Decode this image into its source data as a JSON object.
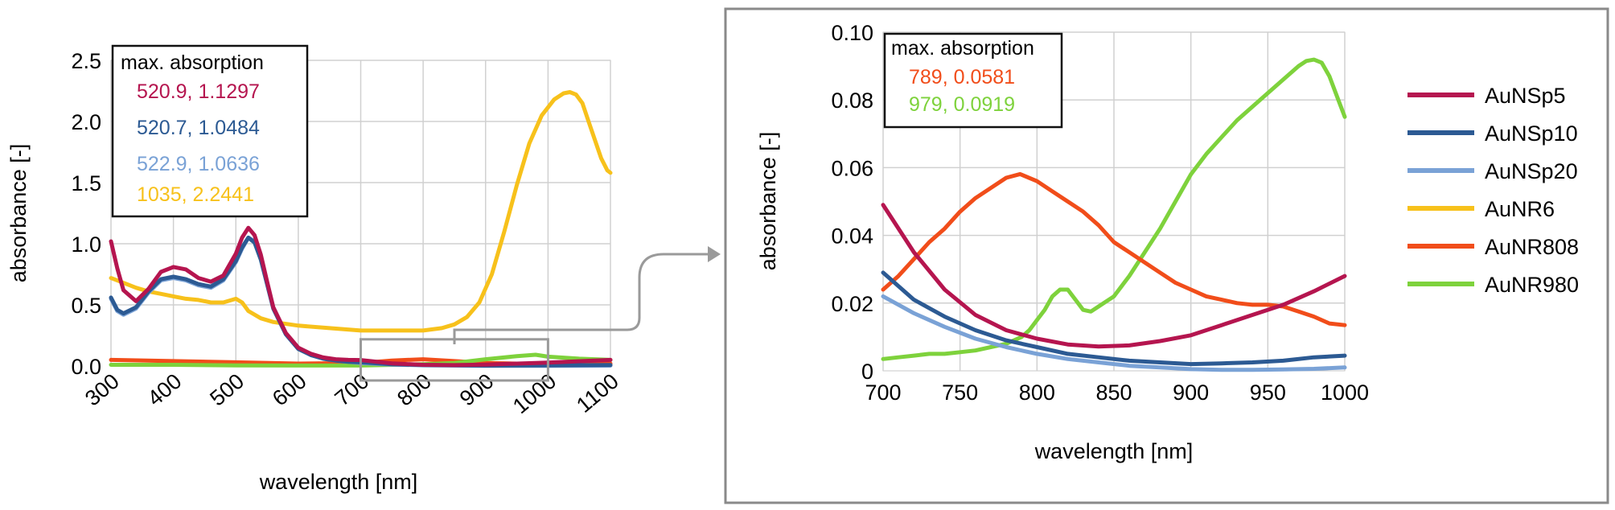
{
  "series_styles": [
    {
      "name": "AuNSp5",
      "color": "#b5154f"
    },
    {
      "name": "AuNSp10",
      "color": "#2c5a93"
    },
    {
      "name": "AuNSp20",
      "color": "#7aa2d6"
    },
    {
      "name": "AuNR6",
      "color": "#f7c11b"
    },
    {
      "name": "AuNR808",
      "color": "#f14d1a"
    },
    {
      "name": "AuNR980",
      "color": "#7ed23c"
    }
  ],
  "chart_data": [
    {
      "type": "line",
      "xlabel": "wavelength [nm]",
      "ylabel": "absorbance [-]",
      "xlim": [
        300,
        1100
      ],
      "ylim": [
        0,
        2.5
      ],
      "xticks": [
        300,
        400,
        500,
        600,
        700,
        800,
        900,
        1000,
        1100
      ],
      "xtick_labels": [
        "300",
        "400",
        "500",
        "600",
        "700",
        "800",
        "900",
        "1000",
        "1100"
      ],
      "yticks": [
        0,
        0.5,
        1.0,
        1.5,
        2.0,
        2.5
      ],
      "ytick_labels": [
        "0.0",
        "0.5",
        "1.0",
        "1.5",
        "2.0",
        "2.5"
      ],
      "grid": true,
      "legend": "none",
      "annotation": {
        "title": "max. absorption",
        "entries": [
          {
            "text": "520.9, 1.1297",
            "series": "AuNSp5"
          },
          {
            "text": "520.7, 1.0484",
            "series": "AuNSp10"
          },
          {
            "text": "522.9, 1.0636",
            "series": "AuNSp20"
          },
          {
            "text": "1035, 2.2441",
            "series": "AuNR6"
          }
        ]
      },
      "zoom_region": {
        "x": [
          700,
          1000
        ],
        "y": [
          0,
          0.1
        ]
      },
      "series": [
        {
          "name": "AuNR6",
          "x": [
            300,
            320,
            340,
            360,
            380,
            400,
            420,
            440,
            460,
            480,
            500,
            510,
            520,
            540,
            560,
            600,
            650,
            700,
            750,
            800,
            830,
            850,
            870,
            890,
            910,
            930,
            950,
            970,
            990,
            1010,
            1025,
            1035,
            1045,
            1055,
            1065,
            1075,
            1085,
            1095,
            1100
          ],
          "values": [
            0.72,
            0.68,
            0.64,
            0.61,
            0.59,
            0.57,
            0.55,
            0.54,
            0.52,
            0.52,
            0.55,
            0.52,
            0.45,
            0.39,
            0.36,
            0.33,
            0.31,
            0.29,
            0.29,
            0.29,
            0.31,
            0.34,
            0.4,
            0.52,
            0.75,
            1.1,
            1.48,
            1.82,
            2.05,
            2.18,
            2.23,
            2.24,
            2.22,
            2.15,
            2.0,
            1.85,
            1.7,
            1.6,
            1.58
          ]
        },
        {
          "name": "AuNR808",
          "x": [
            300,
            400,
            500,
            600,
            700,
            750,
            800,
            850,
            900,
            950,
            1000,
            1050,
            1100
          ],
          "values": [
            0.05,
            0.04,
            0.03,
            0.02,
            0.025,
            0.045,
            0.055,
            0.04,
            0.025,
            0.02,
            0.015,
            0.02,
            0.02
          ]
        },
        {
          "name": "AuNR980",
          "x": [
            300,
            400,
            500,
            600,
            700,
            800,
            850,
            900,
            950,
            980,
            1000,
            1050,
            1100
          ],
          "values": [
            0.01,
            0.01,
            0.005,
            0.004,
            0.004,
            0.015,
            0.025,
            0.055,
            0.08,
            0.092,
            0.076,
            0.06,
            0.05
          ]
        },
        {
          "name": "AuNSp20",
          "x": [
            300,
            310,
            320,
            340,
            360,
            380,
            400,
            420,
            440,
            460,
            480,
            500,
            510,
            520,
            530,
            540,
            550,
            560,
            580,
            600,
            620,
            640,
            660,
            680,
            700,
            750,
            800,
            900,
            1000,
            1100
          ],
          "values": [
            0.55,
            0.45,
            0.42,
            0.47,
            0.6,
            0.7,
            0.72,
            0.7,
            0.66,
            0.64,
            0.7,
            0.85,
            0.96,
            1.05,
            1.02,
            0.88,
            0.68,
            0.48,
            0.26,
            0.14,
            0.09,
            0.06,
            0.045,
            0.035,
            0.025,
            0.012,
            0.006,
            0.002,
            0.002,
            0.003
          ]
        },
        {
          "name": "AuNSp10",
          "x": [
            300,
            310,
            320,
            340,
            360,
            380,
            400,
            420,
            440,
            460,
            480,
            500,
            510,
            520,
            530,
            540,
            550,
            560,
            580,
            600,
            620,
            640,
            660,
            680,
            700,
            750,
            800,
            900,
            1000,
            1100
          ],
          "values": [
            0.56,
            0.46,
            0.43,
            0.48,
            0.61,
            0.71,
            0.73,
            0.71,
            0.67,
            0.65,
            0.71,
            0.86,
            0.97,
            1.05,
            1.01,
            0.87,
            0.67,
            0.47,
            0.26,
            0.14,
            0.09,
            0.06,
            0.045,
            0.035,
            0.03,
            0.015,
            0.008,
            0.003,
            0.005,
            0.008
          ]
        },
        {
          "name": "AuNSp5",
          "x": [
            300,
            310,
            320,
            340,
            360,
            380,
            400,
            420,
            440,
            460,
            480,
            500,
            510,
            520,
            530,
            540,
            550,
            560,
            580,
            600,
            620,
            640,
            660,
            680,
            700,
            750,
            800,
            850,
            900,
            1000,
            1100
          ],
          "values": [
            1.02,
            0.8,
            0.62,
            0.53,
            0.63,
            0.77,
            0.81,
            0.79,
            0.72,
            0.69,
            0.74,
            0.92,
            1.05,
            1.13,
            1.07,
            0.91,
            0.69,
            0.48,
            0.27,
            0.15,
            0.1,
            0.07,
            0.055,
            0.05,
            0.049,
            0.022,
            0.01,
            0.007,
            0.012,
            0.028,
            0.05
          ]
        }
      ]
    },
    {
      "type": "line",
      "xlabel": "wavelength [nm]",
      "ylabel": "absorbance [-]",
      "xlim": [
        700,
        1000
      ],
      "ylim": [
        0,
        0.1
      ],
      "xticks": [
        700,
        750,
        800,
        850,
        900,
        950,
        1000
      ],
      "xtick_labels": [
        "700",
        "750",
        "800",
        "850",
        "900",
        "950",
        "1000"
      ],
      "yticks": [
        0,
        0.02,
        0.04,
        0.06,
        0.08,
        0.1
      ],
      "ytick_labels": [
        "0",
        "0.02",
        "0.04",
        "0.06",
        "0.08",
        "0.10"
      ],
      "grid": true,
      "legend": "right",
      "legend_entries": [
        "AuNSp5",
        "AuNSp10",
        "AuNSp20",
        "AuNR6",
        "AuNR808",
        "AuNR980"
      ],
      "annotation": {
        "title": "max. absorption",
        "entries": [
          {
            "text": "789, 0.0581",
            "series": "AuNR808"
          },
          {
            "text": "979, 0.0919",
            "series": "AuNR980"
          }
        ]
      },
      "series": [
        {
          "name": "AuNR980",
          "x": [
            700,
            710,
            720,
            730,
            740,
            750,
            760,
            770,
            780,
            790,
            795,
            800,
            805,
            810,
            815,
            820,
            825,
            830,
            835,
            840,
            850,
            860,
            870,
            880,
            890,
            900,
            910,
            920,
            930,
            940,
            950,
            960,
            970,
            975,
            980,
            985,
            990,
            995,
            1000
          ],
          "values": [
            0.0035,
            0.004,
            0.0045,
            0.005,
            0.005,
            0.0055,
            0.006,
            0.007,
            0.008,
            0.01,
            0.012,
            0.015,
            0.018,
            0.022,
            0.024,
            0.024,
            0.021,
            0.018,
            0.0175,
            0.019,
            0.022,
            0.028,
            0.035,
            0.042,
            0.05,
            0.058,
            0.064,
            0.069,
            0.074,
            0.078,
            0.082,
            0.086,
            0.09,
            0.0915,
            0.0919,
            0.091,
            0.087,
            0.081,
            0.075
          ]
        },
        {
          "name": "AuNR808",
          "x": [
            700,
            710,
            720,
            730,
            740,
            750,
            760,
            770,
            780,
            789,
            800,
            810,
            820,
            830,
            840,
            850,
            860,
            870,
            880,
            890,
            900,
            910,
            920,
            930,
            940,
            950,
            960,
            970,
            980,
            990,
            1000
          ],
          "values": [
            0.024,
            0.028,
            0.033,
            0.038,
            0.042,
            0.047,
            0.051,
            0.054,
            0.057,
            0.0581,
            0.056,
            0.053,
            0.05,
            0.047,
            0.043,
            0.038,
            0.035,
            0.032,
            0.029,
            0.026,
            0.024,
            0.022,
            0.021,
            0.02,
            0.0195,
            0.0195,
            0.019,
            0.0175,
            0.016,
            0.014,
            0.0135
          ]
        },
        {
          "name": "AuNSp20",
          "x": [
            700,
            720,
            740,
            760,
            780,
            800,
            820,
            840,
            860,
            880,
            900,
            920,
            940,
            960,
            980,
            1000
          ],
          "values": [
            0.022,
            0.017,
            0.013,
            0.0095,
            0.007,
            0.005,
            0.0035,
            0.0025,
            0.0015,
            0.001,
            0.0005,
            0.0003,
            0.0003,
            0.0004,
            0.0006,
            0.001
          ]
        },
        {
          "name": "AuNSp10",
          "x": [
            700,
            720,
            740,
            760,
            780,
            800,
            820,
            840,
            860,
            880,
            900,
            920,
            940,
            960,
            980,
            1000
          ],
          "values": [
            0.029,
            0.021,
            0.016,
            0.012,
            0.009,
            0.007,
            0.005,
            0.004,
            0.003,
            0.0025,
            0.002,
            0.0022,
            0.0025,
            0.003,
            0.004,
            0.0045
          ]
        },
        {
          "name": "AuNSp5",
          "x": [
            700,
            720,
            740,
            760,
            780,
            800,
            820,
            840,
            860,
            880,
            900,
            920,
            940,
            960,
            980,
            1000
          ],
          "values": [
            0.049,
            0.035,
            0.024,
            0.0165,
            0.012,
            0.0095,
            0.0078,
            0.0072,
            0.0075,
            0.0088,
            0.0105,
            0.0135,
            0.0165,
            0.0195,
            0.0235,
            0.028
          ]
        }
      ]
    }
  ]
}
